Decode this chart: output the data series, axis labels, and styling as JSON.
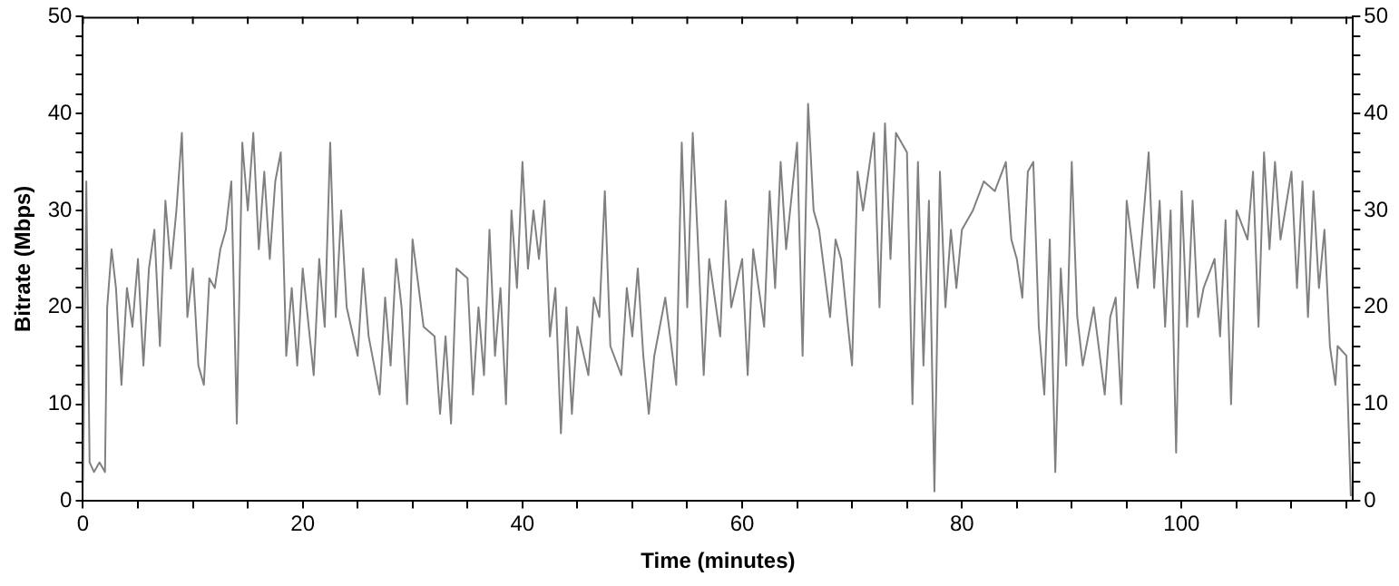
{
  "chart_data": {
    "type": "line",
    "xlabel": "Time (minutes)",
    "ylabel": "Bitrate (Mbps)",
    "grid": false,
    "legend": false,
    "marker": "none",
    "line_style": "solid",
    "xlim": [
      0,
      115.6
    ],
    "xticks": [
      0,
      {
        "value": 5,
        "label": null
      },
      {
        "value": 10,
        "label": null
      },
      {
        "value": 15,
        "label": null
      },
      20,
      {
        "value": 25,
        "label": null
      },
      {
        "value": 30,
        "label": null
      },
      {
        "value": 35,
        "label": null
      },
      40,
      {
        "value": 45,
        "label": null
      },
      {
        "value": 50,
        "label": null
      },
      {
        "value": 55,
        "label": null
      },
      60,
      {
        "value": 65,
        "label": null
      },
      {
        "value": 70,
        "label": null
      },
      {
        "value": 75,
        "label": null
      },
      80,
      {
        "value": 85,
        "label": null
      },
      {
        "value": 90,
        "label": null
      },
      {
        "value": 95,
        "label": null
      },
      100,
      {
        "value": 105,
        "label": null
      },
      {
        "value": 110,
        "label": null
      },
      {
        "value": 115,
        "label": null
      }
    ],
    "ylim": [
      0,
      50
    ],
    "yticks": [
      0,
      {
        "value": 2,
        "label": null
      },
      {
        "value": 4,
        "label": null
      },
      {
        "value": 6,
        "label": null
      },
      {
        "value": 8,
        "label": null
      },
      10,
      {
        "value": 12,
        "label": null
      },
      {
        "value": 14,
        "label": null
      },
      {
        "value": 16,
        "label": null
      },
      {
        "value": 18,
        "label": null
      },
      20,
      {
        "value": 22,
        "label": null
      },
      {
        "value": 24,
        "label": null
      },
      {
        "value": 26,
        "label": null
      },
      {
        "value": 28,
        "label": null
      },
      30,
      {
        "value": 32,
        "label": null
      },
      {
        "value": 34,
        "label": null
      },
      {
        "value": 36,
        "label": null
      },
      {
        "value": 38,
        "label": null
      },
      40,
      {
        "value": 42,
        "label": null
      },
      {
        "value": 44,
        "label": null
      },
      {
        "value": 46,
        "label": null
      },
      {
        "value": 48,
        "label": null
      },
      50
    ],
    "y2lim": [
      0,
      50
    ],
    "y2ticks": [
      0,
      {
        "value": 2,
        "label": null
      },
      {
        "value": 4,
        "label": null
      },
      {
        "value": 6,
        "label": null
      },
      {
        "value": 8,
        "label": null
      },
      10,
      {
        "value": 12,
        "label": null
      },
      {
        "value": 14,
        "label": null
      },
      {
        "value": 16,
        "label": null
      },
      {
        "value": 18,
        "label": null
      },
      20,
      {
        "value": 22,
        "label": null
      },
      {
        "value": 24,
        "label": null
      },
      {
        "value": 26,
        "label": null
      },
      {
        "value": 28,
        "label": null
      },
      30,
      {
        "value": 32,
        "label": null
      },
      {
        "value": 34,
        "label": null
      },
      {
        "value": 36,
        "label": null
      },
      {
        "value": 38,
        "label": null
      },
      40,
      {
        "value": 42,
        "label": null
      },
      {
        "value": 44,
        "label": null
      },
      {
        "value": 46,
        "label": null
      },
      {
        "value": 48,
        "label": null
      },
      50
    ],
    "series": [
      {
        "color": "#808080",
        "x": [
          0,
          0.3,
          0.6,
          1,
          1.5,
          2,
          2.2,
          2.6,
          3,
          3.5,
          4,
          4.5,
          5,
          5.5,
          6,
          6.5,
          7,
          7.5,
          8,
          8.5,
          9,
          9.5,
          10,
          10.5,
          11,
          11.5,
          12,
          12.5,
          13,
          13.5,
          14,
          14.5,
          15,
          15.5,
          16,
          16.5,
          17,
          17.5,
          18,
          18.5,
          19,
          19.5,
          20,
          21,
          21.5,
          22,
          22.5,
          23,
          23.5,
          24,
          25,
          25.5,
          26,
          27,
          27.5,
          28,
          28.5,
          29,
          29.5,
          30,
          31,
          32,
          32.5,
          33,
          33.5,
          34,
          35,
          35.5,
          36,
          36.5,
          37,
          37.5,
          38,
          38.5,
          39,
          39.5,
          40,
          40.5,
          41,
          41.5,
          42,
          42.5,
          43,
          43.5,
          44,
          44.5,
          45,
          46,
          46.5,
          47,
          47.5,
          48,
          49,
          49.5,
          50,
          50.5,
          51,
          51.5,
          52,
          53,
          54,
          54.5,
          55,
          55.5,
          56,
          56.5,
          57,
          58,
          58.5,
          59,
          60,
          60.5,
          61,
          62,
          62.5,
          63,
          63.5,
          64,
          65,
          65.5,
          66,
          66.5,
          67,
          68,
          68.5,
          69,
          70,
          70.5,
          71,
          72,
          72.5,
          73,
          73.5,
          74,
          75,
          75.5,
          76,
          76.5,
          77,
          77.5,
          78,
          78.5,
          79,
          79.5,
          80,
          81,
          82,
          83,
          84,
          84.5,
          85,
          85.5,
          86,
          86.5,
          87,
          87.5,
          88,
          88.5,
          89,
          89.5,
          90,
          90.5,
          91,
          92,
          93,
          93.5,
          94,
          94.5,
          95,
          96,
          97,
          97.5,
          98,
          98.5,
          99,
          99.5,
          100,
          100.5,
          101,
          101.5,
          102,
          103,
          103.5,
          104,
          104.5,
          105,
          106,
          106.5,
          107,
          107.5,
          108,
          108.5,
          109,
          110,
          110.5,
          111,
          111.5,
          112,
          112.5,
          113,
          113.5,
          114,
          114.2,
          115,
          115.4
        ],
        "values": [
          2,
          33,
          4,
          3,
          4,
          3,
          20,
          26,
          22,
          12,
          22,
          18,
          25,
          14,
          24,
          28,
          16,
          31,
          24,
          30,
          38,
          19,
          24,
          14,
          12,
          23,
          22,
          26,
          28,
          33,
          8,
          37,
          30,
          38,
          26,
          34,
          25,
          33,
          36,
          15,
          22,
          14,
          24,
          13,
          25,
          18,
          37,
          19,
          30,
          20,
          15,
          24,
          17,
          11,
          21,
          14,
          25,
          20,
          10,
          27,
          18,
          17,
          9,
          17,
          8,
          24,
          23,
          11,
          20,
          13,
          28,
          15,
          22,
          10,
          30,
          22,
          35,
          24,
          30,
          25,
          31,
          17,
          22,
          7,
          20,
          9,
          18,
          13,
          21,
          19,
          32,
          16,
          13,
          22,
          17,
          24,
          15,
          9,
          15,
          21,
          12,
          37,
          20,
          38,
          26,
          13,
          25,
          17,
          31,
          20,
          25,
          13,
          26,
          18,
          32,
          22,
          35,
          26,
          37,
          15,
          41,
          30,
          28,
          19,
          27,
          25,
          14,
          34,
          30,
          38,
          20,
          39,
          25,
          38,
          36,
          10,
          35,
          14,
          31,
          1,
          34,
          20,
          28,
          22,
          28,
          30,
          33,
          32,
          35,
          27,
          25,
          21,
          34,
          35,
          18,
          11,
          27,
          3,
          24,
          14,
          35,
          19,
          14,
          20,
          11,
          19,
          21,
          10,
          31,
          22,
          36,
          22,
          31,
          18,
          30,
          5,
          32,
          18,
          31,
          19,
          22,
          25,
          17,
          29,
          10,
          30,
          27,
          34,
          18,
          36,
          26,
          35,
          27,
          34,
          22,
          33,
          19,
          32,
          22,
          28,
          16,
          12,
          16,
          15,
          0.5
        ]
      }
    ]
  }
}
